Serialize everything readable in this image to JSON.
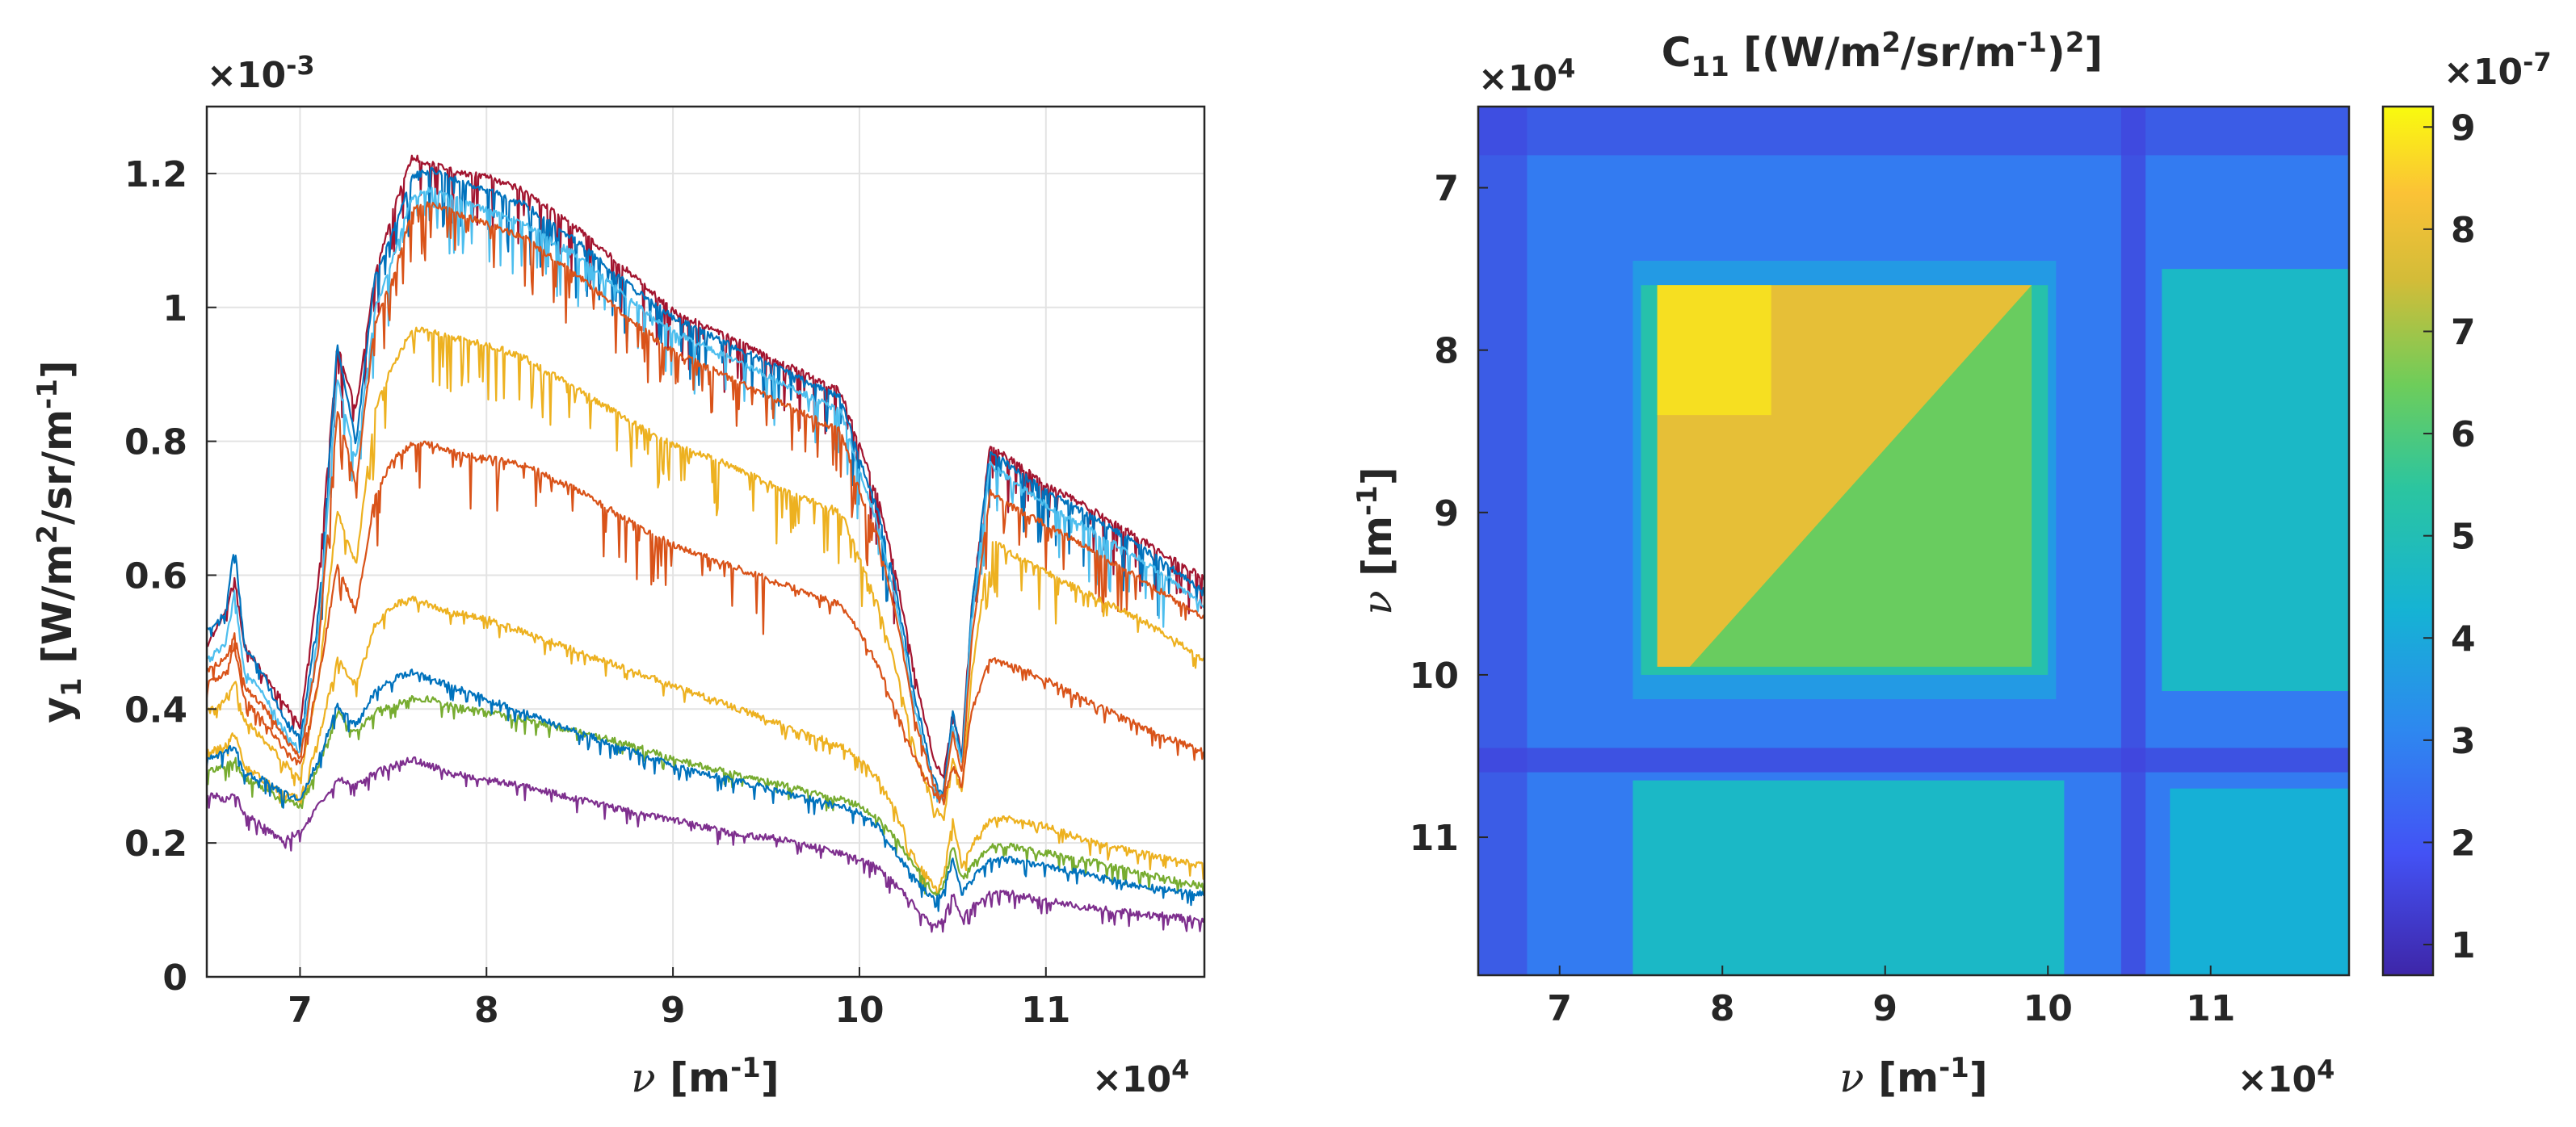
{
  "chart_data": [
    {
      "type": "line",
      "name": "left-spectra",
      "title": "",
      "xlabel_sym": "ν",
      "xlabel": " [m",
      "xlabel_sup": "-1",
      "xlabel_end": "]",
      "ylabel": "y",
      "ylabel_sub": "1",
      "ylabel_mid": " [W/m",
      "ylabel_sup": "2",
      "ylabel_mid2": "/sr/m",
      "ylabel_sup2": "-1",
      "ylabel_end": "]",
      "x_multiplier": "×10",
      "x_multiplier_exp": "4",
      "y_multiplier": "×10",
      "y_multiplier_exp": "-3",
      "xlim": [
        6.5,
        11.85
      ],
      "ylim": [
        0,
        1.3
      ],
      "xticks": [
        7,
        8,
        9,
        10,
        11
      ],
      "xtick_labels": [
        "7",
        "8",
        "9",
        "10",
        "11"
      ],
      "yticks": [
        0,
        0.2,
        0.4,
        0.6,
        0.8,
        1.0,
        1.2
      ],
      "ytick_labels": [
        "0",
        "0.2",
        "0.4",
        "0.6",
        "0.8",
        "1",
        "1.2"
      ],
      "grid": true,
      "x": [
        6.5,
        6.6,
        6.65,
        6.7,
        6.8,
        6.9,
        7.0,
        7.1,
        7.2,
        7.3,
        7.4,
        7.5,
        7.6,
        7.7,
        7.8,
        8.0,
        8.2,
        8.5,
        8.8,
        9.0,
        9.3,
        9.6,
        9.9,
        10.0,
        10.1,
        10.2,
        10.3,
        10.4,
        10.45,
        10.5,
        10.55,
        10.6,
        10.7,
        10.8,
        11.0,
        11.2,
        11.5,
        11.85
      ],
      "series": [
        {
          "name": "red",
          "color": "#A2142F",
          "values": [
            0.5,
            0.55,
            0.6,
            0.5,
            0.46,
            0.42,
            0.38,
            0.6,
            0.95,
            0.85,
            1.05,
            1.15,
            1.23,
            1.22,
            1.21,
            1.2,
            1.18,
            1.12,
            1.05,
            1.0,
            0.96,
            0.92,
            0.88,
            0.8,
            0.72,
            0.6,
            0.45,
            0.33,
            0.3,
            0.4,
            0.34,
            0.55,
            0.8,
            0.78,
            0.74,
            0.71,
            0.66,
            0.6
          ]
        },
        {
          "name": "blue",
          "color": "#0072BD",
          "values": [
            0.52,
            0.55,
            0.65,
            0.5,
            0.46,
            0.4,
            0.36,
            0.55,
            0.95,
            0.8,
            1.05,
            1.12,
            1.2,
            1.21,
            1.2,
            1.18,
            1.16,
            1.1,
            1.03,
            0.99,
            0.95,
            0.91,
            0.87,
            0.78,
            0.7,
            0.58,
            0.42,
            0.3,
            0.28,
            0.4,
            0.33,
            0.55,
            0.79,
            0.77,
            0.73,
            0.7,
            0.65,
            0.58
          ]
        },
        {
          "name": "light-blue",
          "color": "#4DBEEE",
          "values": [
            0.48,
            0.5,
            0.58,
            0.46,
            0.43,
            0.38,
            0.34,
            0.52,
            0.9,
            0.78,
            1.0,
            1.08,
            1.17,
            1.18,
            1.17,
            1.15,
            1.13,
            1.08,
            1.01,
            0.97,
            0.93,
            0.89,
            0.85,
            0.76,
            0.68,
            0.56,
            0.4,
            0.29,
            0.27,
            0.38,
            0.32,
            0.53,
            0.77,
            0.75,
            0.71,
            0.68,
            0.63,
            0.56
          ]
        },
        {
          "name": "orange-upper",
          "color": "#D95319",
          "values": [
            0.46,
            0.48,
            0.52,
            0.44,
            0.41,
            0.37,
            0.33,
            0.5,
            0.85,
            0.74,
            0.98,
            1.05,
            1.15,
            1.16,
            1.15,
            1.13,
            1.11,
            1.05,
            0.98,
            0.94,
            0.9,
            0.86,
            0.82,
            0.73,
            0.66,
            0.54,
            0.39,
            0.29,
            0.27,
            0.37,
            0.31,
            0.5,
            0.73,
            0.71,
            0.68,
            0.65,
            0.6,
            0.54
          ]
        },
        {
          "name": "yellow-upper",
          "color": "#EDB120",
          "values": [
            0.4,
            0.42,
            0.45,
            0.39,
            0.36,
            0.33,
            0.3,
            0.45,
            0.7,
            0.62,
            0.85,
            0.92,
            0.97,
            0.97,
            0.96,
            0.95,
            0.93,
            0.88,
            0.83,
            0.8,
            0.77,
            0.73,
            0.7,
            0.63,
            0.56,
            0.46,
            0.34,
            0.26,
            0.24,
            0.33,
            0.28,
            0.45,
            0.66,
            0.64,
            0.61,
            0.58,
            0.54,
            0.48
          ]
        },
        {
          "name": "orange-lower",
          "color": "#D95319",
          "values": [
            0.44,
            0.46,
            0.5,
            0.42,
            0.39,
            0.35,
            0.32,
            0.45,
            0.62,
            0.55,
            0.72,
            0.78,
            0.8,
            0.8,
            0.79,
            0.78,
            0.77,
            0.73,
            0.68,
            0.65,
            0.62,
            0.59,
            0.56,
            0.52,
            0.47,
            0.4,
            0.33,
            0.28,
            0.27,
            0.32,
            0.29,
            0.4,
            0.48,
            0.47,
            0.45,
            0.42,
            0.38,
            0.34
          ]
        },
        {
          "name": "yellow-lower",
          "color": "#EDB120",
          "values": [
            0.34,
            0.35,
            0.37,
            0.32,
            0.3,
            0.28,
            0.27,
            0.36,
            0.48,
            0.44,
            0.53,
            0.56,
            0.57,
            0.56,
            0.55,
            0.54,
            0.52,
            0.49,
            0.46,
            0.44,
            0.41,
            0.38,
            0.35,
            0.33,
            0.3,
            0.25,
            0.18,
            0.14,
            0.15,
            0.24,
            0.17,
            0.2,
            0.24,
            0.24,
            0.23,
            0.21,
            0.19,
            0.17
          ]
        },
        {
          "name": "green",
          "color": "#77AC30",
          "values": [
            0.31,
            0.32,
            0.33,
            0.3,
            0.29,
            0.27,
            0.26,
            0.32,
            0.4,
            0.37,
            0.4,
            0.41,
            0.42,
            0.42,
            0.41,
            0.4,
            0.39,
            0.37,
            0.35,
            0.33,
            0.31,
            0.29,
            0.27,
            0.26,
            0.24,
            0.21,
            0.17,
            0.13,
            0.14,
            0.2,
            0.15,
            0.17,
            0.2,
            0.2,
            0.19,
            0.18,
            0.16,
            0.14
          ]
        },
        {
          "name": "dark-blue",
          "color": "#0072BD",
          "values": [
            0.33,
            0.34,
            0.35,
            0.31,
            0.3,
            0.28,
            0.27,
            0.33,
            0.41,
            0.38,
            0.43,
            0.45,
            0.46,
            0.45,
            0.44,
            0.42,
            0.4,
            0.37,
            0.34,
            0.32,
            0.3,
            0.28,
            0.26,
            0.25,
            0.23,
            0.19,
            0.15,
            0.12,
            0.13,
            0.18,
            0.13,
            0.15,
            0.18,
            0.18,
            0.17,
            0.16,
            0.14,
            0.13
          ]
        },
        {
          "name": "purple",
          "color": "#7E2F8E",
          "values": [
            0.28,
            0.27,
            0.28,
            0.25,
            0.23,
            0.21,
            0.22,
            0.26,
            0.3,
            0.29,
            0.31,
            0.32,
            0.33,
            0.32,
            0.31,
            0.3,
            0.29,
            0.27,
            0.25,
            0.24,
            0.22,
            0.21,
            0.19,
            0.18,
            0.17,
            0.14,
            0.11,
            0.08,
            0.09,
            0.13,
            0.09,
            0.11,
            0.13,
            0.13,
            0.12,
            0.11,
            0.1,
            0.09
          ]
        }
      ]
    },
    {
      "type": "heatmap",
      "name": "right-covariance",
      "title": "C",
      "title_sub": "11",
      "title_mid": " [(W/m",
      "title_sup": "2",
      "title_mid2": "/sr/m",
      "title_sup2": "-1",
      "title_end": ")",
      "title_sup3": "2",
      "title_end2": "]",
      "xlabel_sym": "ν",
      "xlabel": " [m",
      "xlabel_sup": "-1",
      "xlabel_end": "]",
      "ylabel_sym": "ν",
      "ylabel": " [m",
      "ylabel_sup": "-1",
      "ylabel_end": "]",
      "x_multiplier": "×10",
      "x_multiplier_exp": "4",
      "y_multiplier": "×10",
      "y_multiplier_exp": "4",
      "xlim": [
        6.5,
        11.85
      ],
      "ylim": [
        6.5,
        11.85
      ],
      "y_reversed": true,
      "xticks": [
        7,
        8,
        9,
        10,
        11
      ],
      "xtick_labels": [
        "7",
        "8",
        "9",
        "10",
        "11"
      ],
      "yticks": [
        7,
        8,
        9,
        10,
        11
      ],
      "ytick_labels": [
        "7",
        "8",
        "9",
        "10",
        "11"
      ],
      "colorbar": {
        "min": 0.7,
        "max": 9.2,
        "ticks": [
          1,
          2,
          3,
          4,
          5,
          6,
          7,
          8,
          9
        ],
        "tick_labels": [
          "1",
          "2",
          "3",
          "4",
          "5",
          "6",
          "7",
          "8",
          "9"
        ],
        "multiplier": "×10",
        "multiplier_exp": "-7",
        "colormap": "parula"
      },
      "regions": [
        {
          "x": [
            6.5,
            11.85
          ],
          "y": [
            6.5,
            11.85
          ],
          "value": 2.8
        },
        {
          "x": [
            7.45,
            10.05
          ],
          "y": [
            7.45,
            10.15
          ],
          "value": 3.6
        },
        {
          "x": [
            7.5,
            10.0
          ],
          "y": [
            7.6,
            10.0
          ],
          "value": 5.2
        },
        {
          "x": [
            7.6,
            9.9
          ],
          "y": [
            7.6,
            9.95
          ],
          "value": 6.4
        },
        {
          "x": [
            10.7,
            11.85
          ],
          "y": [
            7.5,
            10.1
          ],
          "value": 4.6
        },
        {
          "x": [
            7.45,
            10.1
          ],
          "y": [
            10.65,
            11.85
          ],
          "value": 4.6
        },
        {
          "x": [
            10.75,
            11.85
          ],
          "y": [
            10.7,
            11.85
          ],
          "value": 4.2
        }
      ],
      "triangle": {
        "x_top": [
          7.6,
          9.9
        ],
        "y_top": 7.6,
        "y_bottom": 9.95,
        "x_bottom": [
          7.6,
          7.8
        ],
        "value": 7.9
      },
      "peak": {
        "x": [
          7.6,
          8.3
        ],
        "y": [
          7.6,
          8.4
        ],
        "value": 8.9
      },
      "low_bands": [
        6.5,
        6.8,
        10.45,
        10.6
      ],
      "band_value": 1.5
    }
  ]
}
